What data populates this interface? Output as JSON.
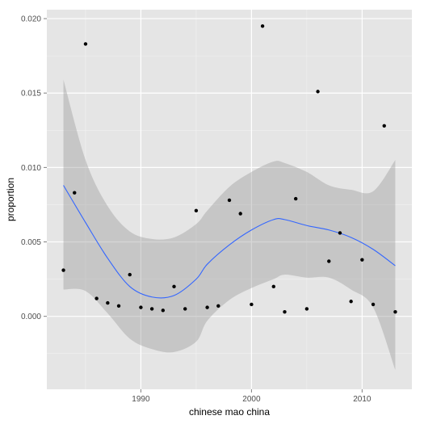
{
  "chart_data": {
    "type": "scatter",
    "title": "",
    "xlabel": "chinese mao china",
    "ylabel": "proportion",
    "xlim": [
      1981.5,
      2014.5
    ],
    "ylim": [
      -0.0049,
      0.0206
    ],
    "xticks": [
      1990,
      2000,
      2010
    ],
    "yticks": [
      0.0,
      0.005,
      0.01,
      0.015,
      0.02
    ],
    "ytick_labels": [
      "0.000",
      "0.005",
      "0.010",
      "0.015",
      "0.020"
    ],
    "grid": true,
    "legend": "none",
    "points": {
      "x": [
        1983,
        1984,
        1985,
        1986,
        1987,
        1988,
        1989,
        1990,
        1991,
        1992,
        1993,
        1994,
        1995,
        1996,
        1997,
        1998,
        1999,
        2000,
        2001,
        2002,
        2003,
        2004,
        2005,
        2006,
        2007,
        2008,
        2009,
        2010,
        2011,
        2012,
        2013
      ],
      "y": [
        0.0031,
        0.0083,
        0.0183,
        0.0012,
        0.0009,
        0.0007,
        0.0028,
        0.0006,
        0.0005,
        0.0004,
        0.002,
        0.0005,
        0.0071,
        0.0006,
        0.0007,
        0.0078,
        0.0069,
        0.0008,
        0.0195,
        0.002,
        0.0003,
        0.0079,
        0.0005,
        0.0151,
        0.0037,
        0.0056,
        0.001,
        0.0038,
        0.0008,
        0.0128,
        0.0003
      ]
    },
    "smooth": {
      "x": [
        1983,
        1985,
        1987,
        1989,
        1991,
        1993,
        1995,
        1996,
        1998,
        2000,
        2002,
        2003,
        2005,
        2007,
        2009,
        2011,
        2013
      ],
      "y": [
        0.0088,
        0.0063,
        0.0039,
        0.002,
        0.0013,
        0.0014,
        0.0025,
        0.0035,
        0.0048,
        0.0058,
        0.0065,
        0.0065,
        0.0061,
        0.0058,
        0.0053,
        0.0045,
        0.0034
      ],
      "upper": [
        0.0159,
        0.0105,
        0.0074,
        0.0057,
        0.0052,
        0.0053,
        0.0062,
        0.0071,
        0.0087,
        0.0097,
        0.0104,
        0.0103,
        0.0097,
        0.0088,
        0.0085,
        0.0084,
        0.0105
      ],
      "lower": [
        0.0018,
        0.0017,
        0.0002,
        -0.0015,
        -0.0022,
        -0.0024,
        -0.0017,
        -0.0003,
        0.0011,
        0.0019,
        0.0025,
        0.0028,
        0.0026,
        0.0026,
        0.0018,
        0.0006,
        -0.0036
      ]
    },
    "colors": {
      "panel": "#e5e5e5",
      "grid_major": "#ffffff",
      "grid_minor": "#f2f2f2",
      "points": "#000000",
      "line": "#3366ff",
      "ribbon": "#999999"
    }
  }
}
